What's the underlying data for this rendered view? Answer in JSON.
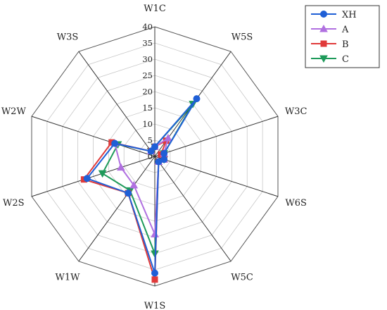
{
  "chart_data": {
    "type": "radar",
    "axes": [
      "W1C",
      "W5S",
      "W3C",
      "W6S",
      "W5C",
      "W1S",
      "W1W",
      "W2S",
      "W2W",
      "W3S"
    ],
    "rlim": [
      0,
      40
    ],
    "ticks": [
      "0",
      "5",
      "10",
      "15",
      "20",
      "25",
      "30",
      "35",
      "40"
    ],
    "grid": true,
    "legend_position": "top-right",
    "series": [
      {
        "name": "XH",
        "color": "#1f5fd6",
        "marker": "circle",
        "values": [
          3,
          22,
          3,
          3,
          2,
          36,
          14,
          22,
          13,
          2
        ]
      },
      {
        "name": "A",
        "color": "#b070e0",
        "marker": "triangle",
        "values": [
          3,
          7,
          3,
          3,
          2,
          24,
          11,
          11,
          13,
          2
        ]
      },
      {
        "name": "B",
        "color": "#e03a3a",
        "marker": "square",
        "values": [
          3,
          6,
          2,
          3,
          2,
          38,
          14,
          23,
          14,
          2
        ]
      },
      {
        "name": "C",
        "color": "#1e9a5a",
        "marker": "triangle-down",
        "values": [
          3,
          20,
          3,
          3,
          2,
          30,
          13,
          17,
          12,
          2
        ]
      }
    ]
  }
}
